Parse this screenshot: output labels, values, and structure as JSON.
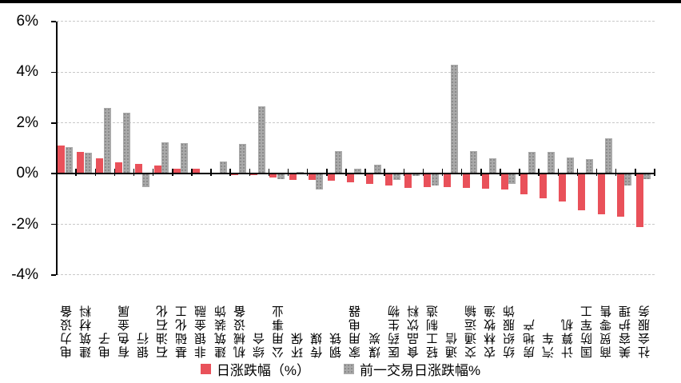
{
  "page": {
    "background": "#ffffff",
    "top_border_color": "#000000"
  },
  "chart_data": {
    "type": "bar",
    "title": "",
    "categories": [
      "电力设备",
      "建筑材料",
      "电子",
      "有色金属",
      "银行",
      "石油石化",
      "基础化工",
      "非银金融",
      "建筑装饰",
      "机械设备",
      "综合",
      "公用事业",
      "环保",
      "传媒",
      "钢铁",
      "家用电器",
      "煤炭",
      "医药生物",
      "食品饮料",
      "轻工制造",
      "通信",
      "交通运输",
      "农林牧渔",
      "纺织服饰",
      "房地产",
      "汽车",
      "计算机",
      "国防军工",
      "商贸零售",
      "美容护理",
      "社会服务"
    ],
    "series": [
      {
        "name": "日涨跌幅（%）",
        "color": "#e9515a",
        "texture": "solid",
        "values": [
          1.12,
          0.86,
          0.61,
          0.45,
          0.37,
          0.32,
          0.21,
          0.18,
          0.05,
          -0.05,
          -0.06,
          -0.14,
          -0.26,
          -0.24,
          -0.27,
          -0.33,
          -0.4,
          -0.48,
          -0.55,
          -0.53,
          -0.53,
          -0.55,
          -0.6,
          -0.61,
          -0.8,
          -0.96,
          -1.1,
          -1.45,
          -1.61,
          -1.71,
          -2.1
        ]
      },
      {
        "name": "前一交易日涨跌幅%",
        "color": "#a9a9a9",
        "texture": "stipple",
        "values": [
          1.04,
          0.84,
          2.6,
          2.4,
          -0.52,
          1.25,
          1.22,
          0.0,
          0.49,
          1.17,
          2.66,
          -0.22,
          0.06,
          -0.61,
          0.9,
          0.21,
          0.34,
          -0.26,
          -0.1,
          -0.48,
          4.29,
          0.9,
          0.61,
          -0.39,
          0.86,
          0.85,
          0.65,
          0.56,
          1.38,
          -0.47,
          -0.22
        ]
      }
    ],
    "ylim": [
      -4,
      6
    ],
    "y_ticks": [
      {
        "value": 6,
        "label": "6%"
      },
      {
        "value": 4,
        "label": "4%"
      },
      {
        "value": 2,
        "label": "2%"
      },
      {
        "value": 0,
        "label": "0%"
      },
      {
        "value": -2,
        "label": "-2%"
      },
      {
        "value": -4,
        "label": "-4%"
      }
    ],
    "grid": "horizontal-dashed",
    "gridline_color": "#c9c9c9",
    "axis_color": "#000000",
    "legend_position": "bottom-center"
  }
}
